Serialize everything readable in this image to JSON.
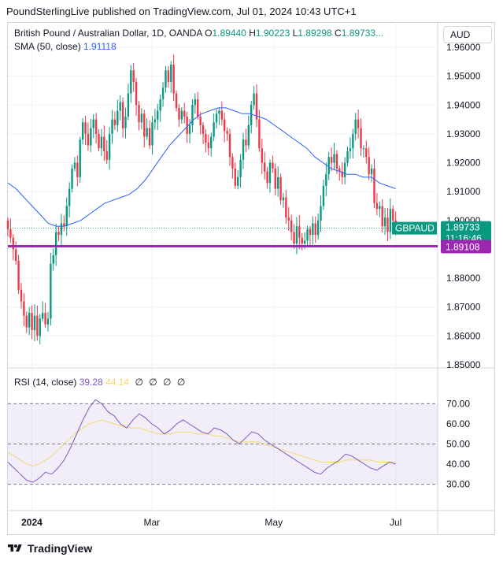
{
  "header": {
    "text": "PoundSterlingLive published on TradingView.com, Jul 01, 2024 10:43 UTC+1"
  },
  "legend": {
    "title": "British Pound / Australian Dollar, 1D, OANDA",
    "o_key": "O",
    "o": "1.89440",
    "h_key": "H",
    "h": "1.90223",
    "l_key": "L",
    "l": "1.89298",
    "c_key": "C",
    "c": "1.89733",
    "more": "...",
    "sma_label": "SMA (50, close)",
    "sma_value": "1.91118",
    "rsi_label": "RSI (14, close)",
    "rsi_value": "39.28",
    "rsi_ma_value": "44.14",
    "na": [
      "∅",
      "∅",
      "∅",
      "∅"
    ]
  },
  "currency": "AUD",
  "footer": {
    "brand": "TradingView"
  },
  "colors": {
    "up": "#089981",
    "down": "#f23645",
    "sma": "#2962ff",
    "rsi": "#7e57c2",
    "rsi_ma": "#f5d76e",
    "hline": "#9c27b0",
    "badge": "#089981"
  },
  "chart_data": [
    {
      "type": "candlestick",
      "title": "British Pound / Australian Dollar, 1D, OANDA",
      "y_ticks": [
        "1.96000",
        "1.95000",
        "1.94000",
        "1.93000",
        "1.92000",
        "1.91000",
        "1.90000",
        "1.89000",
        "1.88000",
        "1.87000",
        "1.86000",
        "1.85000"
      ],
      "ylim": [
        1.85,
        1.96
      ],
      "x_ticks": [
        "2024",
        "Mar",
        "May",
        "Jul"
      ],
      "x_tick_dates": [
        "2024-01-01",
        "2024-03-01",
        "2024-05-01",
        "2024-07-01"
      ],
      "x_range": [
        "2023-12-20",
        "2024-07-22"
      ],
      "last_price": {
        "label": "GBPAUD",
        "value": "1.89733",
        "countdown": "11:16:46"
      },
      "horizontal_line": {
        "value": "1.89108"
      },
      "closes": [
        1.897,
        1.894,
        1.89,
        1.886,
        1.876,
        1.872,
        1.867,
        1.863,
        1.868,
        1.862,
        1.867,
        1.86,
        1.866,
        1.868,
        1.864,
        1.866,
        1.885,
        1.888,
        1.896,
        1.895,
        1.899,
        1.898,
        1.905,
        1.911,
        1.918,
        1.92,
        1.915,
        1.928,
        1.934,
        1.93,
        1.926,
        1.932,
        1.935,
        1.93,
        1.925,
        1.929,
        1.924,
        1.921,
        1.93,
        1.935,
        1.933,
        1.938,
        1.941,
        1.932,
        1.936,
        1.944,
        1.952,
        1.948,
        1.94,
        1.934,
        1.937,
        1.929,
        1.932,
        1.926,
        1.934,
        1.935,
        1.938,
        1.942,
        1.946,
        1.952,
        1.948,
        1.954,
        1.944,
        1.939,
        1.935,
        1.938,
        1.936,
        1.93,
        1.933,
        1.94,
        1.942,
        1.936,
        1.933,
        1.93,
        1.927,
        1.925,
        1.929,
        1.934,
        1.937,
        1.938,
        1.935,
        1.931,
        1.93,
        1.922,
        1.918,
        1.912,
        1.915,
        1.921,
        1.928,
        1.926,
        1.933,
        1.94,
        1.944,
        1.935,
        1.925,
        1.92,
        1.917,
        1.913,
        1.92,
        1.918,
        1.911,
        1.915,
        1.907,
        1.908,
        1.901,
        1.9,
        1.896,
        1.892,
        1.898,
        1.894,
        1.892,
        1.893,
        1.897,
        1.895,
        1.899,
        1.895,
        1.9,
        1.905,
        1.912,
        1.916,
        1.922,
        1.92,
        1.923,
        1.918,
        1.917,
        1.915,
        1.92,
        1.924,
        1.925,
        1.93,
        1.935,
        1.932,
        1.925,
        1.925,
        1.922,
        1.916,
        1.918,
        1.906,
        1.904,
        1.905,
        1.898,
        1.901,
        1.896,
        1.904,
        1.9,
        1.897
      ],
      "sma": [
        1.913,
        1.911,
        1.908,
        1.905,
        1.902,
        1.899,
        1.898,
        1.898,
        1.899,
        1.9,
        1.902,
        1.904,
        1.906,
        1.907,
        1.908,
        1.909,
        1.911,
        1.914,
        1.918,
        1.922,
        1.926,
        1.929,
        1.932,
        1.935,
        1.937,
        1.938,
        1.939,
        1.939,
        1.938,
        1.937,
        1.937,
        1.936,
        1.935,
        1.933,
        1.931,
        1.929,
        1.927,
        1.925,
        1.922,
        1.92,
        1.918,
        1.917,
        1.916,
        1.916,
        1.915,
        1.915,
        1.913,
        1.912,
        1.911
      ],
      "sma_dates": [
        "2023-12-20",
        "2024-01-17",
        "2024-02-14",
        "2024-03-13",
        "2024-04-10",
        "2024-05-08",
        "2024-06-05",
        "2024-07-01"
      ]
    },
    {
      "type": "line",
      "title": "RSI (14, close)",
      "y_ticks": [
        "70.00",
        "60.00",
        "50.00",
        "40.00",
        "30.00"
      ],
      "ylim": [
        22,
        78
      ],
      "bands": [
        70,
        50,
        30
      ],
      "series": [
        {
          "name": "RSI",
          "values": [
            41,
            38,
            35,
            32,
            31,
            33,
            36,
            35,
            38,
            42,
            48,
            55,
            62,
            68,
            72,
            70,
            66,
            64,
            60,
            58,
            62,
            65,
            63,
            60,
            58,
            55,
            57,
            60,
            62,
            60,
            58,
            56,
            55,
            58,
            57,
            55,
            52,
            50,
            53,
            56,
            55,
            52,
            50,
            48,
            46,
            44,
            42,
            40,
            38,
            36,
            35,
            38,
            40,
            42,
            45,
            44,
            42,
            40,
            38,
            37,
            39,
            41,
            40
          ]
        },
        {
          "name": "RSI MA",
          "values": [
            46,
            44,
            42,
            40,
            39,
            40,
            42,
            44,
            47,
            50,
            53,
            56,
            58,
            60,
            61,
            62,
            61,
            60,
            59,
            58,
            58,
            58,
            57,
            56,
            55,
            55,
            55,
            56,
            56,
            56,
            55,
            55,
            55,
            54,
            54,
            53,
            52,
            51,
            51,
            51,
            51,
            50,
            49,
            48,
            47,
            46,
            45,
            44,
            43,
            42,
            41,
            41,
            41,
            41,
            42,
            42,
            42,
            42,
            42,
            41,
            41,
            41,
            41
          ]
        }
      ]
    }
  ]
}
